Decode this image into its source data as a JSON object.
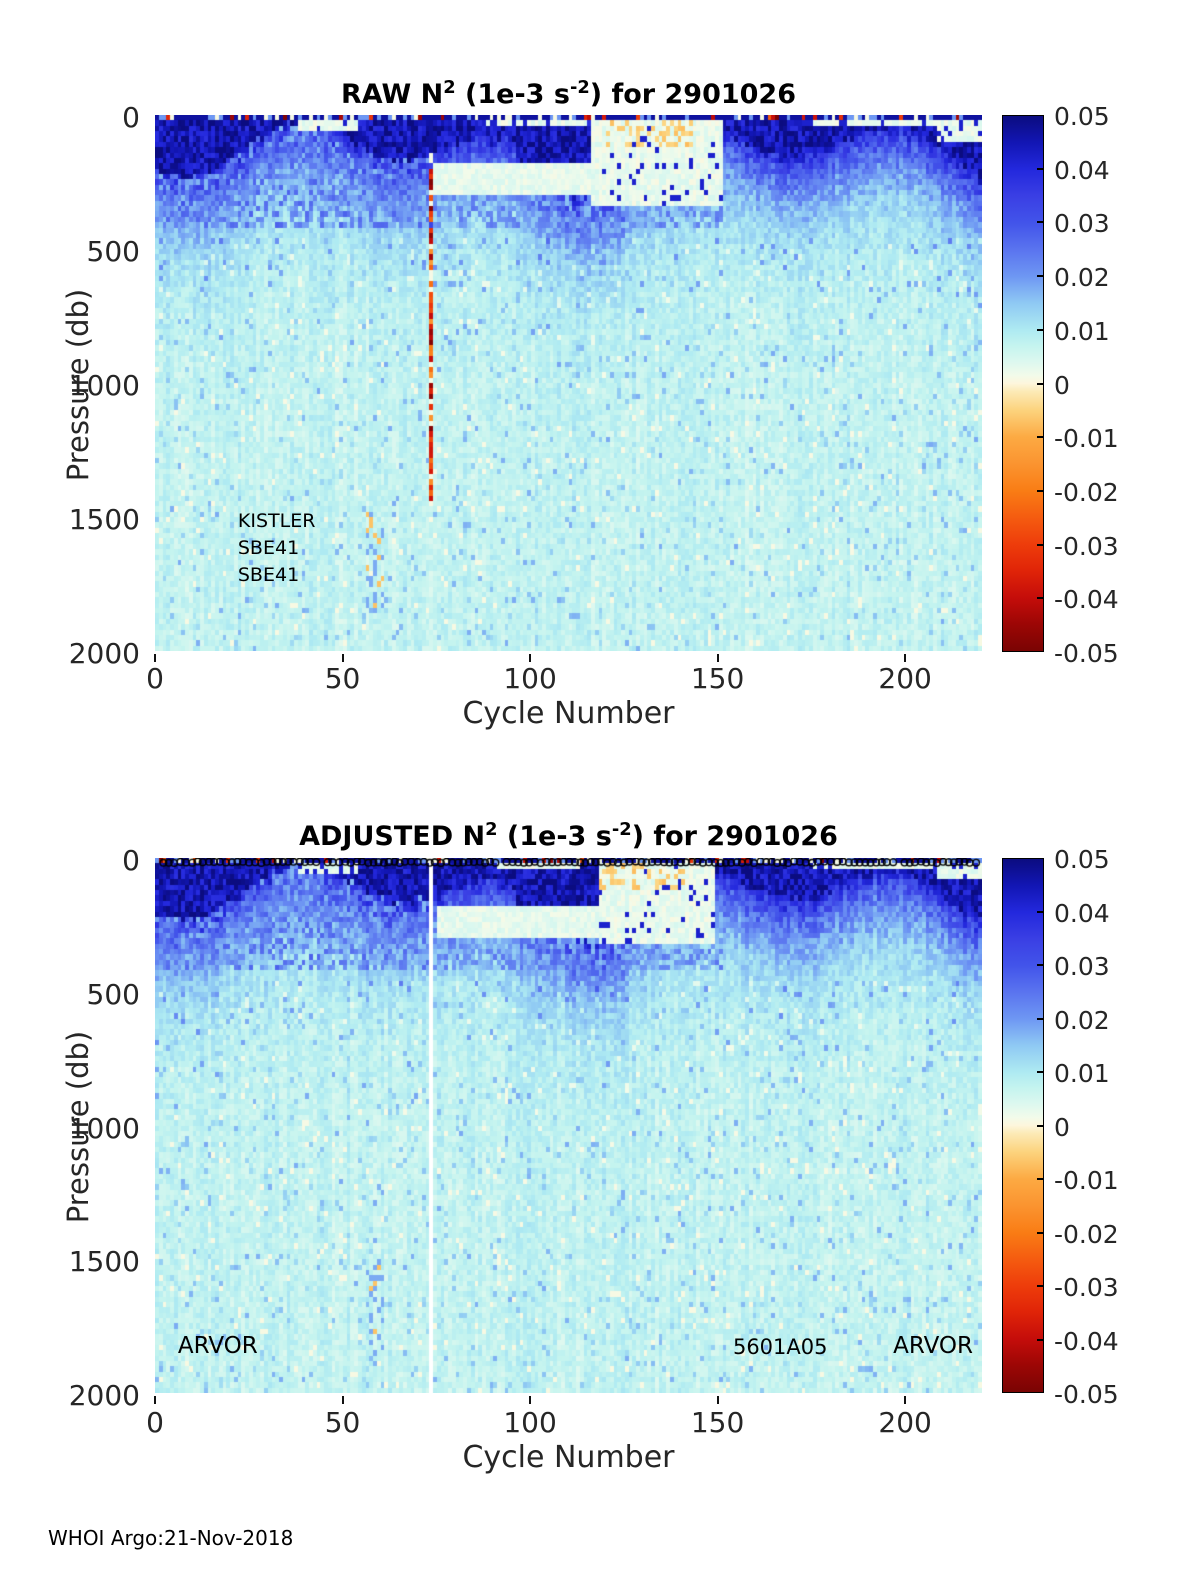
{
  "page": {
    "background": "#ffffff"
  },
  "footer": {
    "text": "WHOI Argo:21-Nov-2018"
  },
  "colormap": {
    "min": -0.05,
    "max": 0.05,
    "stops": [
      {
        "v": -0.05,
        "c": "#7a0403"
      },
      {
        "v": -0.045,
        "c": "#9c0605"
      },
      {
        "v": -0.04,
        "c": "#c50d0a"
      },
      {
        "v": -0.035,
        "c": "#e02408"
      },
      {
        "v": -0.03,
        "c": "#ee3d0b"
      },
      {
        "v": -0.025,
        "c": "#f55c10"
      },
      {
        "v": -0.02,
        "c": "#f97d15"
      },
      {
        "v": -0.015,
        "c": "#fb9430"
      },
      {
        "v": -0.01,
        "c": "#fcaa43"
      },
      {
        "v": -0.005,
        "c": "#fcd37d"
      },
      {
        "v": -0.0015,
        "c": "#fceab6"
      },
      {
        "v": 0.0,
        "c": "#fdf6dc"
      },
      {
        "v": 0.0015,
        "c": "#f2fbea"
      },
      {
        "v": 0.004,
        "c": "#ddf8ef"
      },
      {
        "v": 0.007,
        "c": "#c5f4ef"
      },
      {
        "v": 0.01,
        "c": "#aeeaf2"
      },
      {
        "v": 0.015,
        "c": "#8fc9f3"
      },
      {
        "v": 0.02,
        "c": "#6e97f3"
      },
      {
        "v": 0.025,
        "c": "#5a74ef"
      },
      {
        "v": 0.03,
        "c": "#4254ea"
      },
      {
        "v": 0.035,
        "c": "#3a3fe4"
      },
      {
        "v": 0.04,
        "c": "#2328dd"
      },
      {
        "v": 0.045,
        "c": "#1216b4"
      },
      {
        "v": 0.05,
        "c": "#0b0c80"
      }
    ]
  },
  "chart_data": [
    {
      "id": "raw",
      "type": "heatmap",
      "title_parts": {
        "t1": "RAW N",
        "sup1": "2",
        "t2": " (1e-3 s",
        "sup2": "-2",
        "t3": ") for 2901026"
      },
      "xlabel": "Cycle Number",
      "ylabel": "Pressure (db)",
      "x_range": [
        0,
        220.5
      ],
      "y_range": [
        0,
        2000
      ],
      "x_ticks": [
        "0",
        "50",
        "100",
        "150",
        "200"
      ],
      "x_tick_values": [
        0,
        50,
        100,
        150,
        200
      ],
      "y_ticks": [
        "0",
        "500",
        "1000",
        "1500",
        "2000"
      ],
      "y_tick_values": [
        0,
        500,
        1000,
        1500,
        2000
      ],
      "colorbar_ticks": [
        "0.05",
        "0.04",
        "0.03",
        "0.02",
        "0.01",
        "0",
        "-0.01",
        "-0.02",
        "-0.03",
        "-0.04",
        "-0.05"
      ],
      "colorbar_tick_values": [
        0.05,
        0.04,
        0.03,
        0.02,
        0.01,
        0,
        -0.01,
        -0.02,
        -0.03,
        -0.04,
        -0.05
      ],
      "annotations": [
        {
          "text": "KISTLER",
          "cycle": 22.1,
          "pressure": 1515,
          "size": 19
        },
        {
          "text": "SBE41",
          "cycle": 22.1,
          "pressure": 1615,
          "size": 19
        },
        {
          "text": "SBE41",
          "cycle": 22.1,
          "pressure": 1715,
          "size": 19
        }
      ],
      "features": {
        "seed": 7,
        "marker_row": false,
        "surface_speck_row": true,
        "bad_column": {
          "cycle": 73,
          "mode": "negative_stripe",
          "d0": 140,
          "d1": 1460
        },
        "surface_cream_patches": [
          [
            38,
            53,
            70
          ],
          [
            88,
            114,
            45
          ],
          [
            116,
            150,
            340
          ],
          [
            172,
            207,
            35
          ],
          [
            208,
            220,
            100
          ]
        ],
        "pale_band": [
          74,
          118,
          180,
          300
        ],
        "tan_patch": [
          120,
          142,
          130
        ],
        "deep_specks": [
          56,
          60,
          1480,
          1850
        ]
      }
    },
    {
      "id": "adjusted",
      "type": "heatmap",
      "title_parts": {
        "t1": "ADJUSTED N",
        "sup1": "2",
        "t2": " (1e-3 s",
        "sup2": "-2",
        "t3": ") for 2901026"
      },
      "xlabel": "Cycle Number",
      "ylabel": "Pressure (db)",
      "x_range": [
        0,
        220.5
      ],
      "y_range": [
        0,
        2000
      ],
      "x_ticks": [
        "0",
        "50",
        "100",
        "150",
        "200"
      ],
      "x_tick_values": [
        0,
        50,
        100,
        150,
        200
      ],
      "y_ticks": [
        "0",
        "500",
        "1000",
        "1500",
        "2000"
      ],
      "y_tick_values": [
        0,
        500,
        1000,
        1500,
        2000
      ],
      "colorbar_ticks": [
        "0.05",
        "0.04",
        "0.03",
        "0.02",
        "0.01",
        "0",
        "-0.01",
        "-0.02",
        "-0.03",
        "-0.04",
        "-0.05"
      ],
      "colorbar_tick_values": [
        0.05,
        0.04,
        0.03,
        0.02,
        0.01,
        0,
        -0.01,
        -0.02,
        -0.03,
        -0.04,
        -0.05
      ],
      "annotations": [
        {
          "text": "ARVOR",
          "cycle": 6.1,
          "pressure": 1825,
          "size": 23
        },
        {
          "text": "5601A05",
          "cycle": 154.1,
          "pressure": 1828,
          "size": 21
        },
        {
          "text": "ARVOR",
          "cycle": 196.8,
          "pressure": 1825,
          "size": 23
        }
      ],
      "features": {
        "seed": 13,
        "marker_row": true,
        "surface_speck_row": true,
        "bad_column": {
          "cycle": 73,
          "mode": "white",
          "d0": 0,
          "d1": 2000
        },
        "surface_cream_patches": [
          [
            38,
            53,
            60
          ],
          [
            90,
            112,
            40
          ],
          [
            118,
            148,
            330
          ],
          [
            175,
            206,
            35
          ],
          [
            208,
            220,
            90
          ]
        ],
        "pale_band": [
          75,
          118,
          185,
          300
        ],
        "tan_patch": [
          118,
          140,
          130
        ],
        "deep_specks": [
          56,
          60,
          1500,
          1850
        ]
      }
    }
  ]
}
